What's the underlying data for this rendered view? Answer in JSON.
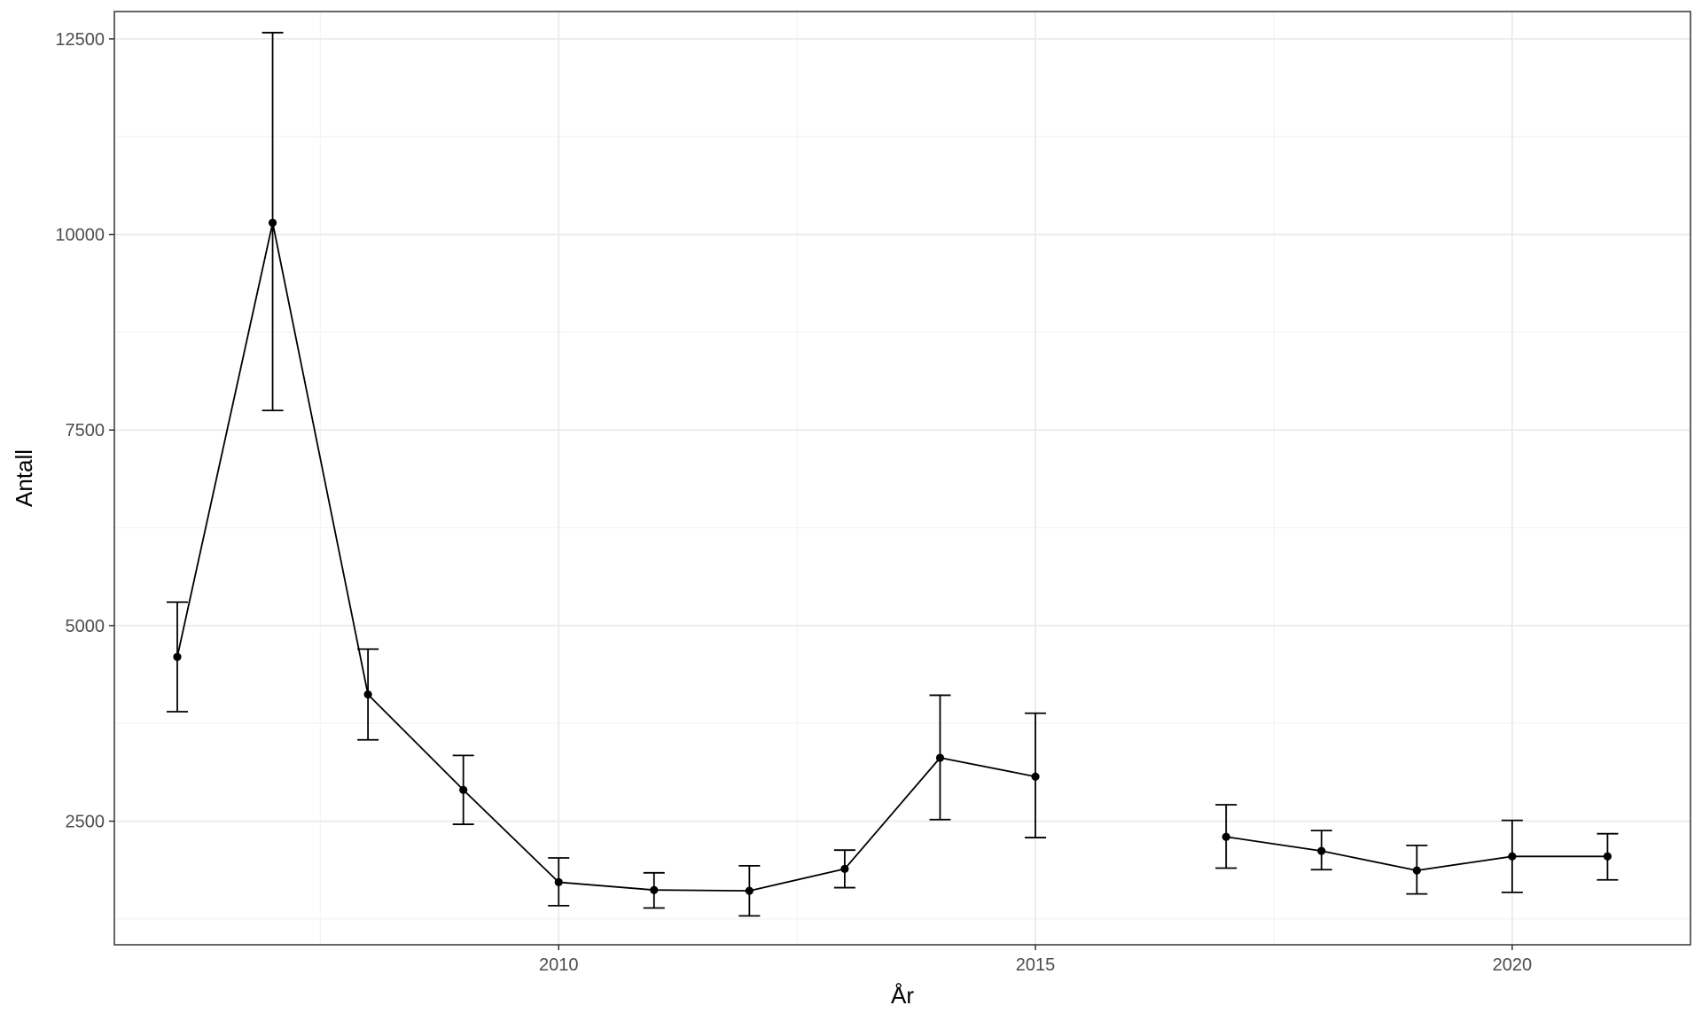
{
  "chart_data": {
    "type": "line",
    "title": "",
    "xlabel": "År",
    "ylabel": "Antall",
    "xlim": [
      2005.34,
      2021.87
    ],
    "ylim": [
      920,
      12850
    ],
    "x_ticks": [
      2010,
      2015,
      2020
    ],
    "x_tick_labels": [
      "2010",
      "2015",
      "2020"
    ],
    "y_ticks": [
      2500,
      5000,
      7500,
      10000,
      12500
    ],
    "y_tick_labels": [
      "2500",
      "5000",
      "7500",
      "10000",
      "12500"
    ],
    "grid": true,
    "legend": "none",
    "error_bars": true,
    "series": [
      {
        "segments": [
          [
            2006,
            2007,
            2008,
            2009,
            2010,
            2011,
            2012,
            2013,
            2014,
            2015
          ],
          [
            2017,
            2018,
            2019,
            2020,
            2021
          ]
        ],
        "points": [
          {
            "x": 2006,
            "y": 4600,
            "ymin": 3900,
            "ymax": 5300
          },
          {
            "x": 2007,
            "y": 10150,
            "ymin": 7750,
            "ymax": 12580
          },
          {
            "x": 2008,
            "y": 4120,
            "ymin": 3540,
            "ymax": 4700
          },
          {
            "x": 2009,
            "y": 2900,
            "ymin": 2460,
            "ymax": 3340
          },
          {
            "x": 2010,
            "y": 1720,
            "ymin": 1420,
            "ymax": 2030
          },
          {
            "x": 2011,
            "y": 1620,
            "ymin": 1390,
            "ymax": 1840
          },
          {
            "x": 2012,
            "y": 1610,
            "ymin": 1290,
            "ymax": 1930
          },
          {
            "x": 2013,
            "y": 1890,
            "ymin": 1650,
            "ymax": 2130
          },
          {
            "x": 2014,
            "y": 3310,
            "ymin": 2520,
            "ymax": 4110
          },
          {
            "x": 2015,
            "y": 3070,
            "ymin": 2290,
            "ymax": 3880
          },
          {
            "x": 2017,
            "y": 2300,
            "ymin": 1900,
            "ymax": 2710
          },
          {
            "x": 2018,
            "y": 2120,
            "ymin": 1880,
            "ymax": 2380
          },
          {
            "x": 2019,
            "y": 1870,
            "ymin": 1570,
            "ymax": 2190
          },
          {
            "x": 2020,
            "y": 2050,
            "ymin": 1590,
            "ymax": 2510
          },
          {
            "x": 2021,
            "y": 2050,
            "ymin": 1750,
            "ymax": 2340
          }
        ]
      }
    ],
    "colors": {
      "line": "#000000",
      "panel_border": "#333333",
      "grid_major": "#ebebeb",
      "grid_minor": "#f3f3f3",
      "tick_text": "#4d4d4d"
    }
  }
}
